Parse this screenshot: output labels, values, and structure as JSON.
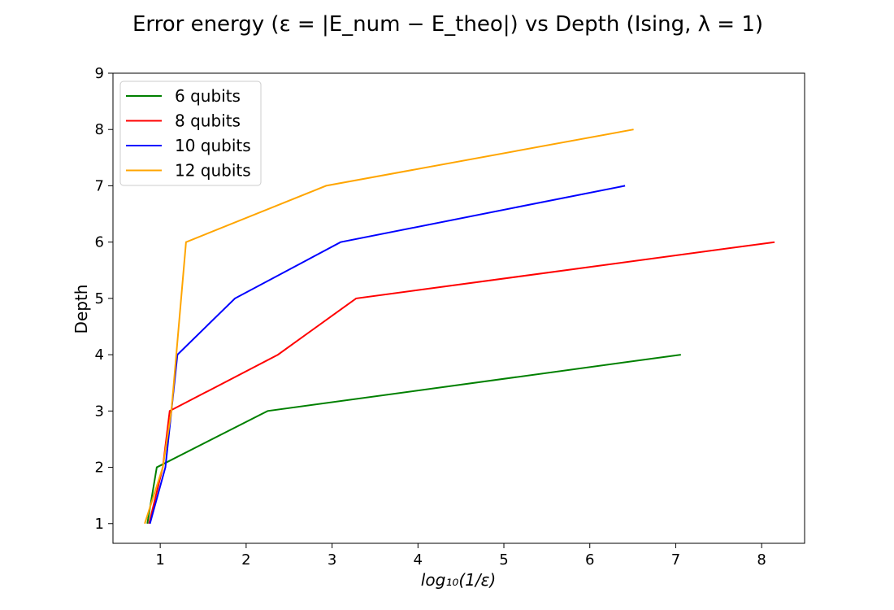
{
  "chart_data": {
    "type": "line",
    "title": "Error energy (ε = |E_num − E_theo|) vs Depth (Ising, λ = 1)",
    "xlabel": "log₁₀(1/ε)",
    "ylabel": "Depth",
    "xlim": [
      0.45,
      8.5
    ],
    "ylim": [
      0.65,
      9.0
    ],
    "xticks": [
      1,
      2,
      3,
      4,
      5,
      6,
      7,
      8
    ],
    "yticks": [
      1,
      2,
      3,
      4,
      5,
      6,
      7,
      8,
      9
    ],
    "grid": false,
    "legend_position": "upper-left",
    "series": [
      {
        "name": "6 qubits",
        "color": "#008000",
        "x": [
          0.85,
          0.96,
          2.25,
          7.06
        ],
        "y": [
          1,
          2,
          3,
          4
        ]
      },
      {
        "name": "8 qubits",
        "color": "#ff0000",
        "x": [
          0.87,
          1.03,
          1.11,
          2.37,
          3.28,
          8.15
        ],
        "y": [
          1,
          2,
          3,
          4,
          5,
          6
        ]
      },
      {
        "name": "10 qubits",
        "color": "#0000ff",
        "x": [
          0.88,
          1.06,
          1.2,
          1.87,
          3.1,
          6.41
        ],
        "y": [
          1,
          2,
          4,
          5,
          6,
          7
        ]
      },
      {
        "name": "12 qubits",
        "color": "#ffa500",
        "x": [
          0.82,
          1.03,
          1.13,
          1.3,
          2.93,
          6.51
        ],
        "y": [
          1,
          2,
          3,
          6,
          7,
          8
        ]
      }
    ]
  }
}
